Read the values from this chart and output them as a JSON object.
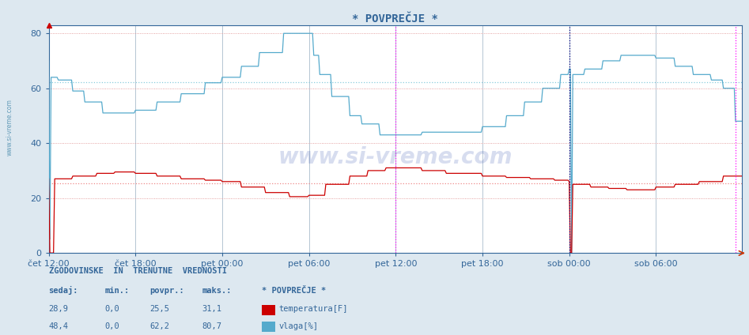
{
  "title": "* POVPREČJE *",
  "bg_color": "#dde8f0",
  "plot_bg_color": "#ffffff",
  "grid_color_h": "#dd8888",
  "grid_color_v": "#aabbcc",
  "temp_color": "#cc0000",
  "vlaga_color": "#55aacc",
  "temp_avg_color": "#ee8888",
  "vlaga_avg_color": "#88ccdd",
  "vline_magenta": "#ff00ff",
  "vline_dark": "#000080",
  "ylim": [
    0,
    83
  ],
  "yticks": [
    0,
    20,
    40,
    60,
    80
  ],
  "tick_color": "#336699",
  "title_color": "#336699",
  "xtick_labels": [
    "čet 12:00",
    "čet 18:00",
    "pet 00:00",
    "pet 06:00",
    "pet 12:00",
    "pet 18:00",
    "sob 00:00",
    "sob 06:00"
  ],
  "watermark": "www.si-vreme.com",
  "side_label": "www.si-vreme.com",
  "temp_avg_val": 25.5,
  "vlaga_avg_val": 62.2,
  "table_header": "ZGODOVINSKE  IN  TRENUTNE  VREDNOSTI",
  "col_headers": [
    "sedaj:",
    "min.:",
    "povpr.:",
    "maks.:",
    "* POVPREČJE *"
  ],
  "row1_vals": [
    "28,9",
    "0,0",
    "25,5",
    "31,1"
  ],
  "row2_vals": [
    "48,4",
    "0,0",
    "62,2",
    "80,7"
  ],
  "row1_legend": "temperatura[F]",
  "row2_legend": "vlaga[%]"
}
